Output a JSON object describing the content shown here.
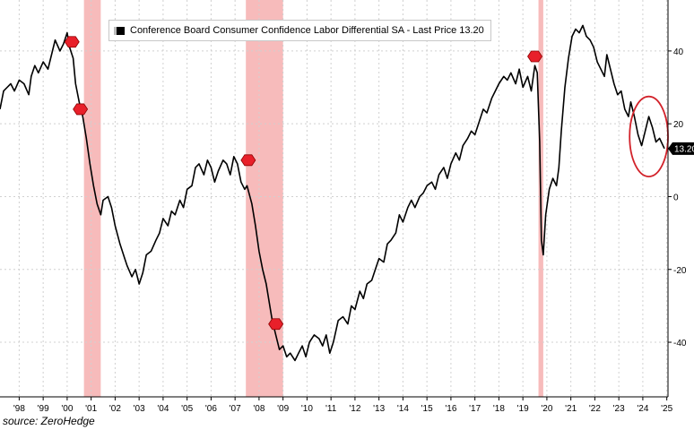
{
  "colors": {
    "line": "#000000",
    "recession_shade": "#f4a4a4",
    "grid": "#d0d0d0",
    "marker": "#e8202a",
    "highlight_circle": "#d2222a",
    "last_price_box": "#000000"
  },
  "legend": {
    "label": "Conference Board Consumer Confidence Labor Differential SA - Last Price 13.20"
  },
  "last_price_label": "13.20",
  "source": "source: ZeroHedge",
  "chart_data": {
    "type": "line",
    "title": "Conference Board Consumer Confidence Labor Differential SA",
    "xlabel": "",
    "ylabel": "",
    "xlim": [
      1997.7,
      2025.55
    ],
    "ylim": [
      -55,
      54
    ],
    "y_ticks": [
      40,
      20,
      0,
      -20,
      -40
    ],
    "y_tick_labels": [
      "40",
      "20",
      "0",
      "-20",
      "-40"
    ],
    "x_tick_positions": [
      1998.5,
      1999.5,
      2000.5,
      2001.5,
      2002.5,
      2003.5,
      2004.5,
      2005.5,
      2006.5,
      2007.5,
      2008.5,
      2009.5,
      2010.5,
      2011.5,
      2012.5,
      2013.5,
      2014.5,
      2015.5,
      2016.5,
      2017.5,
      2018.5,
      2019.5,
      2020.5,
      2021.5,
      2022.5,
      2023.5,
      2024.5,
      2025.5
    ],
    "x_tick_labels": [
      "'98",
      "'99",
      "'00",
      "'01",
      "'02",
      "'03",
      "'04",
      "'05",
      "'06",
      "'07",
      "'08",
      "'09",
      "'10",
      "'11",
      "'12",
      "'13",
      "'14",
      "'15",
      "'16",
      "'17",
      "'18",
      "'19",
      "'20",
      "'21",
      "'22",
      "'23",
      "'24",
      "'25"
    ],
    "grid": true,
    "legend_position": "top-left",
    "last_value": 13.2,
    "recessions": [
      {
        "start": 2001.2,
        "end": 2001.9
      },
      {
        "start": 2007.95,
        "end": 2009.5
      },
      {
        "start": 2020.15,
        "end": 2020.35
      }
    ],
    "markers": [
      {
        "x": 2000.7,
        "y": 42.5
      },
      {
        "x": 2001.05,
        "y": 24
      },
      {
        "x": 2008.05,
        "y": 10
      },
      {
        "x": 2009.2,
        "y": -35
      },
      {
        "x": 2020.0,
        "y": 38.5
      }
    ],
    "highlight": {
      "x": 2024.75,
      "y": 16.5,
      "rx": 0.8,
      "ry": 11
    },
    "series": [
      {
        "name": "Labor Differential SA",
        "points": [
          [
            1997.7,
            24
          ],
          [
            1997.85,
            29
          ],
          [
            1998.0,
            30
          ],
          [
            1998.15,
            31
          ],
          [
            1998.3,
            29
          ],
          [
            1998.5,
            32
          ],
          [
            1998.7,
            31
          ],
          [
            1998.9,
            28
          ],
          [
            1999.0,
            33
          ],
          [
            1999.15,
            36
          ],
          [
            1999.3,
            34
          ],
          [
            1999.5,
            37
          ],
          [
            1999.7,
            35
          ],
          [
            1999.85,
            39
          ],
          [
            2000.0,
            43
          ],
          [
            2000.2,
            40
          ],
          [
            2000.35,
            42
          ],
          [
            2000.5,
            45
          ],
          [
            2000.6,
            41
          ],
          [
            2000.75,
            38
          ],
          [
            2000.85,
            31
          ],
          [
            2001.0,
            26
          ],
          [
            2001.15,
            22
          ],
          [
            2001.3,
            16
          ],
          [
            2001.45,
            9
          ],
          [
            2001.6,
            3
          ],
          [
            2001.75,
            -2
          ],
          [
            2001.9,
            -5
          ],
          [
            2002.0,
            -1
          ],
          [
            2002.2,
            0
          ],
          [
            2002.35,
            -3
          ],
          [
            2002.5,
            -8
          ],
          [
            2002.7,
            -13
          ],
          [
            2002.9,
            -17
          ],
          [
            2003.0,
            -19
          ],
          [
            2003.2,
            -22
          ],
          [
            2003.35,
            -20
          ],
          [
            2003.5,
            -24
          ],
          [
            2003.65,
            -21
          ],
          [
            2003.8,
            -16
          ],
          [
            2004.0,
            -15
          ],
          [
            2004.2,
            -12
          ],
          [
            2004.35,
            -10
          ],
          [
            2004.5,
            -6
          ],
          [
            2004.7,
            -8
          ],
          [
            2004.85,
            -4
          ],
          [
            2005.0,
            -5
          ],
          [
            2005.2,
            -1
          ],
          [
            2005.35,
            -3
          ],
          [
            2005.5,
            2
          ],
          [
            2005.7,
            3
          ],
          [
            2005.85,
            8
          ],
          [
            2006.0,
            9
          ],
          [
            2006.2,
            6
          ],
          [
            2006.35,
            10
          ],
          [
            2006.5,
            8
          ],
          [
            2006.65,
            4
          ],
          [
            2006.8,
            7
          ],
          [
            2007.0,
            10
          ],
          [
            2007.15,
            9
          ],
          [
            2007.3,
            6
          ],
          [
            2007.45,
            11
          ],
          [
            2007.6,
            9
          ],
          [
            2007.75,
            4
          ],
          [
            2007.9,
            2
          ],
          [
            2008.0,
            3
          ],
          [
            2008.2,
            -2
          ],
          [
            2008.35,
            -8
          ],
          [
            2008.5,
            -15
          ],
          [
            2008.65,
            -20
          ],
          [
            2008.8,
            -24
          ],
          [
            2008.95,
            -30
          ],
          [
            2009.05,
            -34
          ],
          [
            2009.2,
            -38
          ],
          [
            2009.35,
            -42
          ],
          [
            2009.5,
            -41
          ],
          [
            2009.65,
            -44
          ],
          [
            2009.8,
            -43
          ],
          [
            2010.0,
            -45
          ],
          [
            2010.15,
            -43
          ],
          [
            2010.3,
            -41
          ],
          [
            2010.45,
            -44
          ],
          [
            2010.6,
            -40
          ],
          [
            2010.8,
            -38
          ],
          [
            2011.0,
            -39
          ],
          [
            2011.15,
            -41
          ],
          [
            2011.3,
            -38
          ],
          [
            2011.45,
            -43
          ],
          [
            2011.6,
            -40
          ],
          [
            2011.8,
            -34
          ],
          [
            2012.0,
            -33
          ],
          [
            2012.2,
            -35
          ],
          [
            2012.35,
            -30
          ],
          [
            2012.5,
            -31
          ],
          [
            2012.7,
            -26
          ],
          [
            2012.85,
            -28
          ],
          [
            2013.0,
            -24
          ],
          [
            2013.2,
            -23
          ],
          [
            2013.35,
            -20
          ],
          [
            2013.5,
            -17
          ],
          [
            2013.7,
            -18
          ],
          [
            2013.85,
            -13
          ],
          [
            2014.0,
            -12
          ],
          [
            2014.2,
            -10
          ],
          [
            2014.35,
            -5
          ],
          [
            2014.5,
            -7
          ],
          [
            2014.7,
            -3
          ],
          [
            2014.85,
            -1
          ],
          [
            2015.0,
            -3
          ],
          [
            2015.2,
            0
          ],
          [
            2015.35,
            1
          ],
          [
            2015.5,
            3
          ],
          [
            2015.7,
            4
          ],
          [
            2015.85,
            2
          ],
          [
            2016.0,
            6
          ],
          [
            2016.2,
            8
          ],
          [
            2016.35,
            5
          ],
          [
            2016.5,
            9
          ],
          [
            2016.7,
            12
          ],
          [
            2016.85,
            10
          ],
          [
            2017.0,
            14
          ],
          [
            2017.2,
            16
          ],
          [
            2017.35,
            18
          ],
          [
            2017.5,
            17
          ],
          [
            2017.7,
            21
          ],
          [
            2017.85,
            24
          ],
          [
            2018.0,
            23
          ],
          [
            2018.2,
            27
          ],
          [
            2018.35,
            29
          ],
          [
            2018.5,
            31
          ],
          [
            2018.7,
            33
          ],
          [
            2018.85,
            32
          ],
          [
            2019.0,
            34
          ],
          [
            2019.2,
            31
          ],
          [
            2019.35,
            35
          ],
          [
            2019.5,
            30
          ],
          [
            2019.7,
            33
          ],
          [
            2019.85,
            29
          ],
          [
            2020.0,
            36
          ],
          [
            2020.1,
            34
          ],
          [
            2020.2,
            15
          ],
          [
            2020.27,
            -12
          ],
          [
            2020.35,
            -16
          ],
          [
            2020.45,
            -5
          ],
          [
            2020.6,
            2
          ],
          [
            2020.75,
            5
          ],
          [
            2020.9,
            3
          ],
          [
            2021.0,
            8
          ],
          [
            2021.1,
            18
          ],
          [
            2021.25,
            30
          ],
          [
            2021.4,
            38
          ],
          [
            2021.55,
            44
          ],
          [
            2021.7,
            46
          ],
          [
            2021.85,
            45
          ],
          [
            2022.0,
            47
          ],
          [
            2022.15,
            44
          ],
          [
            2022.3,
            43
          ],
          [
            2022.45,
            41
          ],
          [
            2022.6,
            37
          ],
          [
            2022.75,
            35
          ],
          [
            2022.9,
            33
          ],
          [
            2023.0,
            39
          ],
          [
            2023.15,
            35
          ],
          [
            2023.3,
            31
          ],
          [
            2023.45,
            28
          ],
          [
            2023.6,
            29
          ],
          [
            2023.75,
            24
          ],
          [
            2023.9,
            22
          ],
          [
            2024.0,
            26
          ],
          [
            2024.15,
            22
          ],
          [
            2024.3,
            17
          ],
          [
            2024.45,
            14
          ],
          [
            2024.6,
            18
          ],
          [
            2024.75,
            22
          ],
          [
            2024.9,
            19
          ],
          [
            2025.05,
            15
          ],
          [
            2025.2,
            16
          ],
          [
            2025.4,
            13.2
          ]
        ]
      }
    ]
  }
}
